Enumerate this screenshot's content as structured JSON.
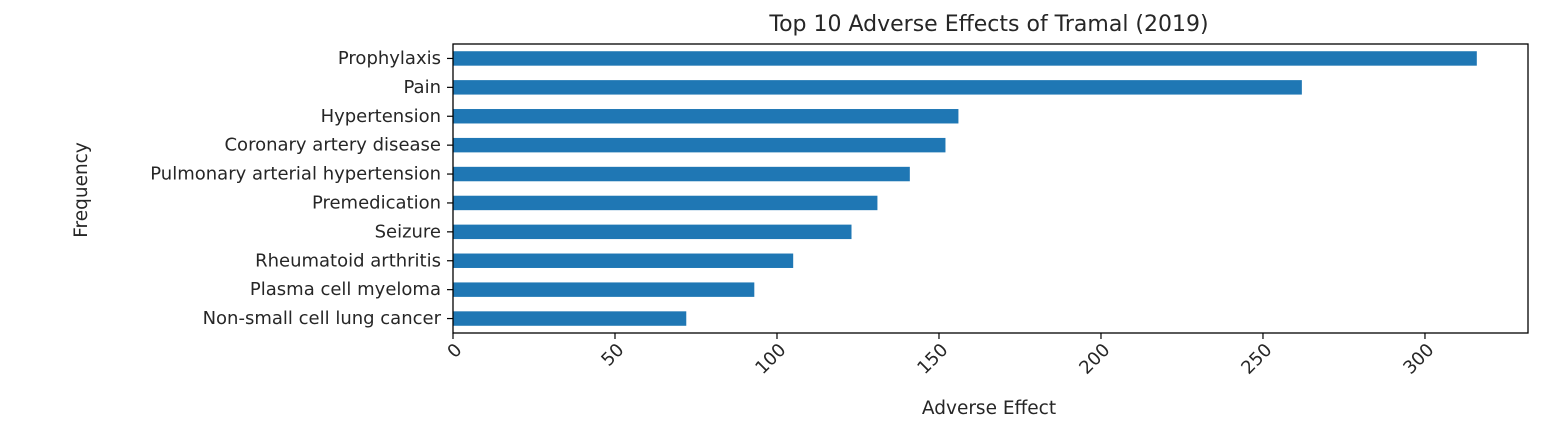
{
  "chart_data": {
    "type": "bar",
    "orientation": "horizontal",
    "title": "Top 10 Adverse Effects of Tramal (2019)",
    "xlabel": "Adverse Effect",
    "ylabel": "Frequency",
    "categories": [
      "Prophylaxis",
      "Pain",
      "Hypertension",
      "Coronary artery disease",
      "Pulmonary arterial hypertension",
      "Premedication",
      "Seizure",
      "Rheumatoid arthritis",
      "Plasma cell myeloma",
      "Non-small cell lung cancer"
    ],
    "values": [
      316,
      262,
      156,
      152,
      141,
      131,
      123,
      105,
      93,
      72
    ],
    "xlim": [
      0,
      331.8
    ],
    "xticks": [
      0,
      50,
      100,
      150,
      200,
      250,
      300
    ],
    "grid": false,
    "bar_color": "#1f77b4"
  }
}
